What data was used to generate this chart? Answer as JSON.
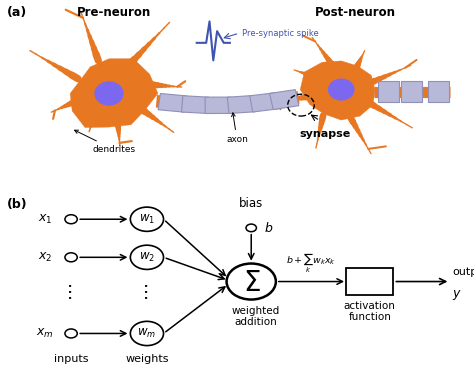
{
  "bg_color": "#ffffff",
  "neuron_color": "#E87722",
  "nucleus_color": "#7B68EE",
  "myelin_color": "#B8B8D8",
  "myelin_edge": "#9090B8",
  "spike_color": "#4055B0",
  "text_color": "#000000",
  "pre_neuron_label": "Pre-neuron",
  "post_neuron_label": "Post-neuron",
  "synapse_label": "synapse",
  "dendrites_label": "dendrites",
  "axon_label": "axon",
  "pre_synaptic_label": "Pre-synaptic spike",
  "panel_a_label": "(a)",
  "panel_b_label": "(b)",
  "bias_label": "bias",
  "weighted_addition_label": "weighted\naddition",
  "activation_function_label": "activation\nfunction",
  "output_label": "output",
  "y_label": "y",
  "inputs_label": "inputs",
  "weights_label": "weights"
}
